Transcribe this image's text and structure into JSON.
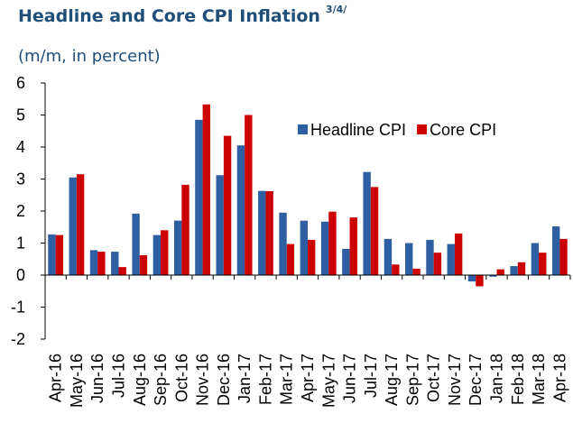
{
  "chart_data": {
    "type": "bar",
    "title": "Headline and Core CPI Inflation",
    "title_note": "3/4/",
    "subtitle": "(m/m, in percent)",
    "categories": [
      "Apr-16",
      "May-16",
      "Jun-16",
      "Jul-16",
      "Aug-16",
      "Sep-16",
      "Oct-16",
      "Nov-16",
      "Dec-16",
      "Jan-17",
      "Feb-17",
      "Mar-17",
      "Apr-17",
      "May-17",
      "Jun-17",
      "Jul-17",
      "Aug-17",
      "Sep-17",
      "Oct-17",
      "Nov-17",
      "Dec-17",
      "Jan-18",
      "Feb-18",
      "Mar-18",
      "Apr-18"
    ],
    "series": [
      {
        "name": "Headline CPI",
        "color": "#2e5fa3",
        "values": [
          1.27,
          3.05,
          0.78,
          0.73,
          1.92,
          1.25,
          1.7,
          4.85,
          3.12,
          4.05,
          2.63,
          1.95,
          1.7,
          1.67,
          0.82,
          3.22,
          1.13,
          1.0,
          1.1,
          0.97,
          -0.2,
          -0.05,
          0.28,
          1.0,
          1.52
        ]
      },
      {
        "name": "Core CPI",
        "color": "#cc0000",
        "values": [
          1.25,
          3.15,
          0.73,
          0.25,
          0.62,
          1.4,
          2.82,
          5.33,
          4.35,
          5.0,
          2.62,
          0.97,
          1.1,
          1.98,
          1.8,
          2.75,
          0.33,
          0.2,
          0.7,
          1.3,
          -0.35,
          0.18,
          0.4,
          0.7,
          1.13
        ]
      }
    ],
    "ylim": [
      -2,
      6
    ],
    "yticks": [
      -2,
      -1,
      0,
      1,
      2,
      3,
      4,
      5,
      6
    ],
    "legend": "upper right"
  }
}
